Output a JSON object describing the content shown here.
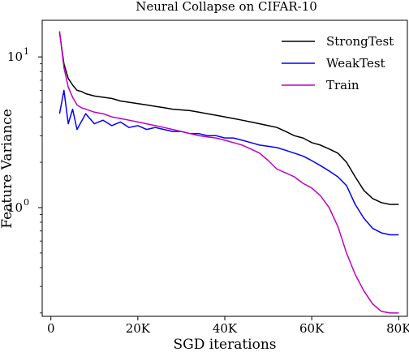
{
  "chart_data": {
    "type": "line",
    "title": "Neural Collapse on CIFAR-10",
    "xlabel": "SGD iterations",
    "ylabel": "Feature Variance",
    "xlim": [
      -2000,
      82000
    ],
    "ylim": [
      0.19,
      17.5
    ],
    "yscale": "log",
    "x_ticks": [
      0,
      20000,
      40000,
      60000,
      80000
    ],
    "x_tick_labels": [
      "0",
      "20K",
      "40K",
      "60K",
      "80K"
    ],
    "y_ticks": [
      1,
      10
    ],
    "y_tick_labels": [
      {
        "base": "10",
        "exp": "0"
      },
      {
        "base": "10",
        "exp": "1"
      }
    ],
    "legend_position": "top-right",
    "grid": false,
    "series": [
      {
        "name": "StrongTest",
        "color": "#000000",
        "x": [
          2000,
          3000,
          4000,
          5000,
          6000,
          7000,
          8000,
          10000,
          12000,
          14000,
          16000,
          18000,
          20000,
          22000,
          24000,
          26000,
          28000,
          30000,
          32000,
          34000,
          36000,
          38000,
          40000,
          42000,
          44000,
          46000,
          48000,
          50000,
          52000,
          54000,
          56000,
          58000,
          60000,
          62000,
          64000,
          66000,
          68000,
          70000,
          72000,
          74000,
          76000,
          78000,
          80000
        ],
        "y": [
          14.5,
          9.0,
          7.2,
          6.5,
          6.0,
          5.9,
          5.7,
          5.5,
          5.4,
          5.3,
          5.1,
          5.0,
          4.9,
          4.8,
          4.7,
          4.6,
          4.5,
          4.45,
          4.4,
          4.3,
          4.2,
          4.1,
          4.0,
          3.9,
          3.8,
          3.7,
          3.6,
          3.5,
          3.4,
          3.2,
          3.0,
          2.9,
          2.7,
          2.6,
          2.45,
          2.3,
          2.0,
          1.6,
          1.3,
          1.15,
          1.08,
          1.05,
          1.05
        ]
      },
      {
        "name": "WeakTest",
        "color": "#0000ff",
        "x": [
          2000,
          3000,
          4000,
          5000,
          6000,
          8000,
          10000,
          12000,
          14000,
          16000,
          18000,
          20000,
          22000,
          24000,
          26000,
          28000,
          30000,
          32000,
          34000,
          36000,
          38000,
          40000,
          42000,
          44000,
          46000,
          48000,
          50000,
          52000,
          54000,
          56000,
          58000,
          60000,
          62000,
          64000,
          66000,
          68000,
          70000,
          72000,
          74000,
          76000,
          78000,
          80000
        ],
        "y": [
          4.2,
          6.0,
          3.6,
          4.5,
          3.3,
          4.2,
          3.6,
          3.8,
          3.5,
          3.7,
          3.4,
          3.5,
          3.3,
          3.4,
          3.3,
          3.2,
          3.2,
          3.1,
          3.1,
          3.0,
          3.0,
          2.9,
          2.9,
          2.8,
          2.7,
          2.6,
          2.55,
          2.5,
          2.4,
          2.3,
          2.2,
          2.05,
          1.9,
          1.75,
          1.6,
          1.4,
          1.05,
          0.85,
          0.73,
          0.68,
          0.66,
          0.66
        ]
      },
      {
        "name": "Train",
        "color": "#c000c0",
        "x": [
          2000,
          3000,
          4000,
          5000,
          6000,
          7000,
          8000,
          10000,
          12000,
          14000,
          16000,
          18000,
          20000,
          22000,
          24000,
          26000,
          28000,
          30000,
          32000,
          34000,
          36000,
          38000,
          40000,
          42000,
          44000,
          46000,
          48000,
          50000,
          52000,
          54000,
          56000,
          58000,
          60000,
          62000,
          64000,
          66000,
          68000,
          70000,
          72000,
          74000,
          76000,
          78000,
          80000
        ],
        "y": [
          14.8,
          8.5,
          6.3,
          5.4,
          4.8,
          4.6,
          4.5,
          4.3,
          4.2,
          4.0,
          3.9,
          3.8,
          3.7,
          3.6,
          3.5,
          3.4,
          3.3,
          3.2,
          3.1,
          3.0,
          2.95,
          2.9,
          2.8,
          2.7,
          2.6,
          2.45,
          2.3,
          2.05,
          1.8,
          1.7,
          1.6,
          1.45,
          1.35,
          1.2,
          1.0,
          0.75,
          0.5,
          0.36,
          0.28,
          0.23,
          0.205,
          0.2,
          0.2
        ]
      }
    ]
  }
}
